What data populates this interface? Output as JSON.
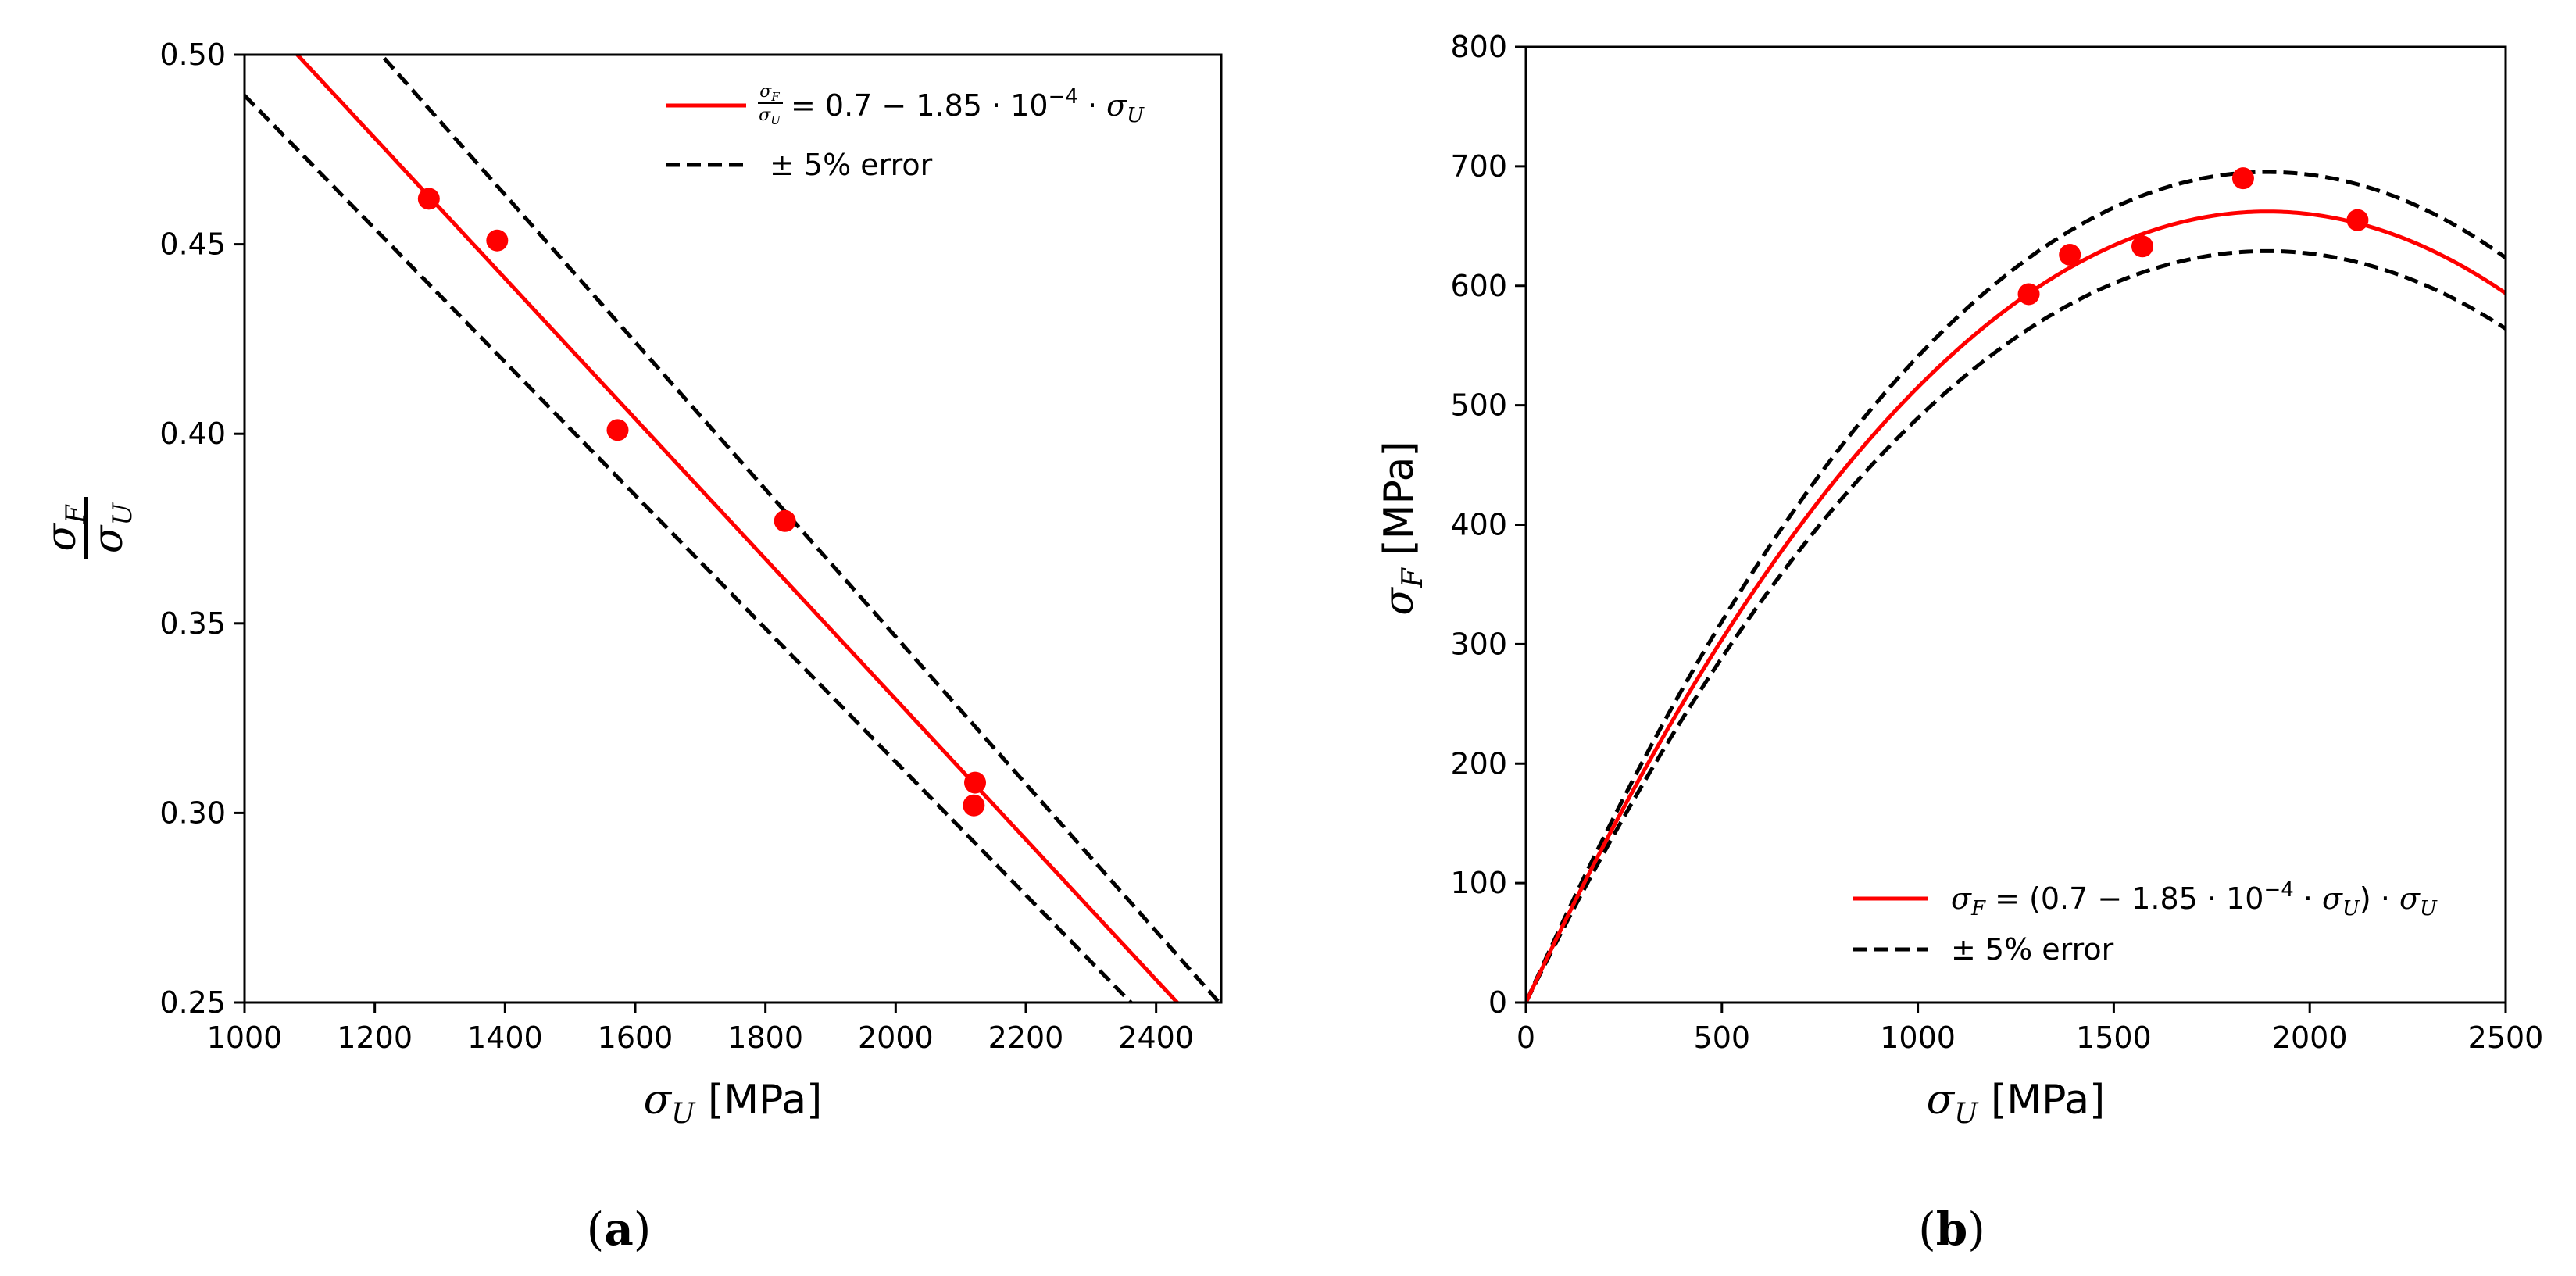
{
  "colors": {
    "fit": "#ff0000",
    "error": "#000000",
    "points": "#ff0000"
  },
  "chart_data": [
    {
      "type": "scatter",
      "panel": "a",
      "caption_letter": "a",
      "xlabel": "σU [MPa]",
      "ylabel": "σF / σU",
      "xlim": [
        1000,
        2500
      ],
      "ylim": [
        0.25,
        0.5
      ],
      "xticks": [
        1000,
        1200,
        1400,
        1600,
        1800,
        2000,
        2200,
        2400
      ],
      "yticks": [
        0.25,
        0.3,
        0.35,
        0.4,
        0.45,
        0.5
      ],
      "ytick_labels": [
        "0.25",
        "0.30",
        "0.35",
        "0.40",
        "0.45",
        "0.50"
      ],
      "model": {
        "a": 0.7,
        "b": 0.000185,
        "form": "ratio"
      },
      "error_band": 0.05,
      "points": [
        {
          "x": 1283,
          "y": 0.462
        },
        {
          "x": 1388,
          "y": 0.451
        },
        {
          "x": 1573,
          "y": 0.401
        },
        {
          "x": 1830,
          "y": 0.377
        },
        {
          "x": 2122,
          "y": 0.308
        },
        {
          "x": 2120,
          "y": 0.302
        }
      ],
      "legend": {
        "position": "top-right",
        "fit_label": "σF/σU = 0.7 − 1.85 · 10−4 · σU",
        "error_label": "± 5% error"
      }
    },
    {
      "type": "scatter",
      "panel": "b",
      "caption_letter": "b",
      "xlabel": "σU [MPa]",
      "ylabel": "σF [MPa]",
      "xlim": [
        0,
        2500
      ],
      "ylim": [
        0,
        800
      ],
      "xticks": [
        0,
        500,
        1000,
        1500,
        2000,
        2500
      ],
      "yticks": [
        0,
        100,
        200,
        300,
        400,
        500,
        600,
        700,
        800
      ],
      "model": {
        "a": 0.7,
        "b": 0.000185,
        "form": "stress"
      },
      "error_band": 0.05,
      "points": [
        {
          "x": 1283,
          "y": 593
        },
        {
          "x": 1388,
          "y": 626
        },
        {
          "x": 1573,
          "y": 633
        },
        {
          "x": 1830,
          "y": 690
        },
        {
          "x": 2122,
          "y": 655
        }
      ],
      "legend": {
        "position": "lower-right",
        "fit_label": "σF = (0.7 − 1.85 · 10−4 · σU) · σU",
        "error_label": "± 5% error"
      }
    }
  ]
}
